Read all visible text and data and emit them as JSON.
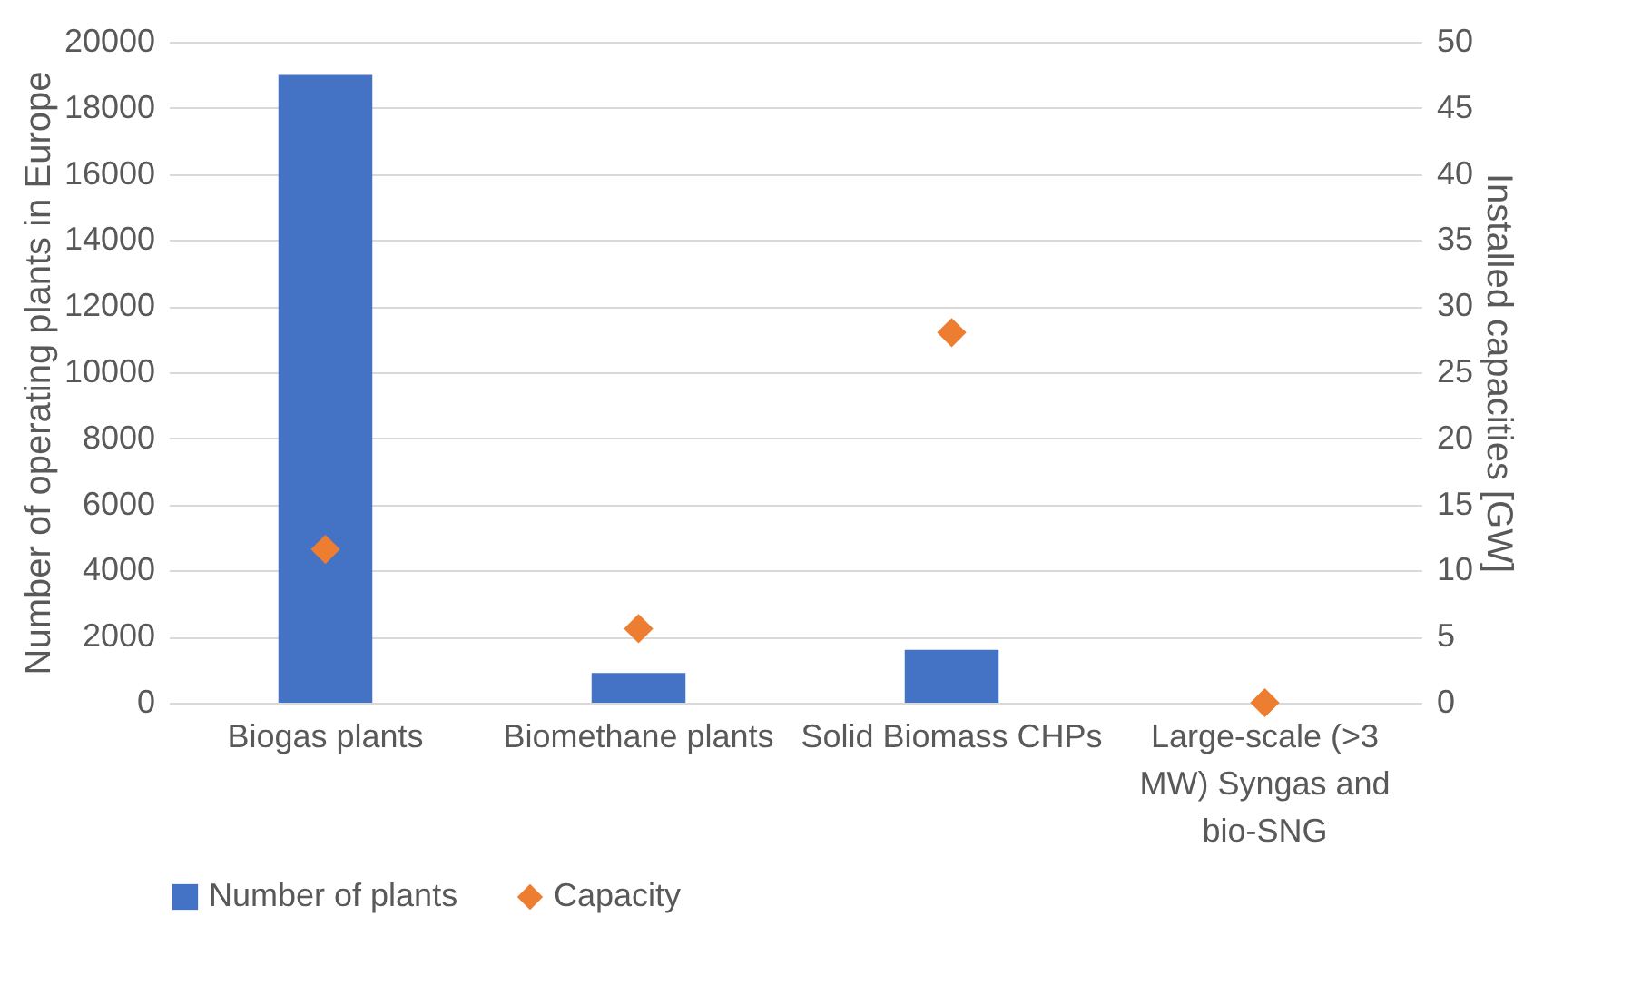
{
  "chart_data": {
    "type": "bar",
    "categories": [
      "Biogas plants",
      "Biomethane plants",
      "Solid Biomass CHPs",
      "Large-scale (>3 MW) Syngas and bio-SNG"
    ],
    "ylabel": "Number of operating plants in Europe",
    "y2label": "Installed capacities [GW]",
    "ylim": [
      0,
      20000
    ],
    "yticks": [
      0,
      2000,
      4000,
      6000,
      8000,
      10000,
      12000,
      14000,
      16000,
      18000,
      20000
    ],
    "y2lim": [
      0,
      50
    ],
    "y2ticks": [
      0,
      5,
      10,
      15,
      20,
      25,
      30,
      35,
      40,
      45,
      50
    ],
    "grid": "y",
    "legend": "bottom",
    "marker": "diamond",
    "series": [
      {
        "name": "Number of plants",
        "color": "#4472c4",
        "values": [
          19000,
          900,
          1600,
          0
        ]
      },
      {
        "name": "Capacity",
        "type": "scatter",
        "axis": "y2",
        "color": "#ed7d31",
        "values": [
          11.6,
          5.6,
          28,
          0
        ]
      }
    ]
  }
}
